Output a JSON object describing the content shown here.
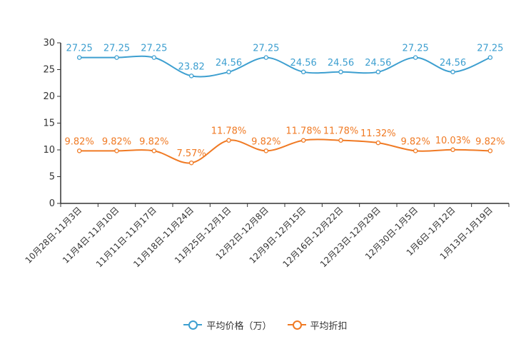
{
  "chart_data": {
    "type": "line",
    "categories": [
      "10月28日-11月3日",
      "11月4日-11月10日",
      "11月11日-11月17日",
      "11月18日-11月24日",
      "11月25日-12月1日",
      "12月2日-12月8日",
      "12月9日-12月15日",
      "12月16日-12月22日",
      "12月23日-12月29日",
      "12月30日-1月5日",
      "1月6日-1月12日",
      "1月13日-1月19日"
    ],
    "ylim": [
      0,
      30
    ],
    "yticks": [
      0,
      5,
      10,
      15,
      20,
      25,
      30
    ],
    "series": [
      {
        "name": "平均价格（万）",
        "color": "#3d9fd0",
        "values": [
          27.25,
          27.25,
          27.25,
          23.82,
          24.56,
          27.25,
          24.56,
          24.56,
          24.56,
          27.25,
          24.56,
          27.25
        ],
        "labels": [
          "27.25",
          "27.25",
          "27.25",
          "23.82",
          "24.56",
          "27.25",
          "24.56",
          "24.56",
          "24.56",
          "27.25",
          "24.56",
          "27.25"
        ]
      },
      {
        "name": "平均折扣",
        "color": "#f07a24",
        "values": [
          9.82,
          9.82,
          9.82,
          7.57,
          11.78,
          9.82,
          11.78,
          11.78,
          11.32,
          9.82,
          10.03,
          9.82
        ],
        "labels": [
          "9.82%",
          "9.82%",
          "9.82%",
          "7.57%",
          "11.78%",
          "9.82%",
          "11.78%",
          "11.78%",
          "11.32%",
          "9.82%",
          "10.03%",
          "9.82%"
        ]
      }
    ],
    "title": "",
    "xlabel": "",
    "ylabel": ""
  }
}
